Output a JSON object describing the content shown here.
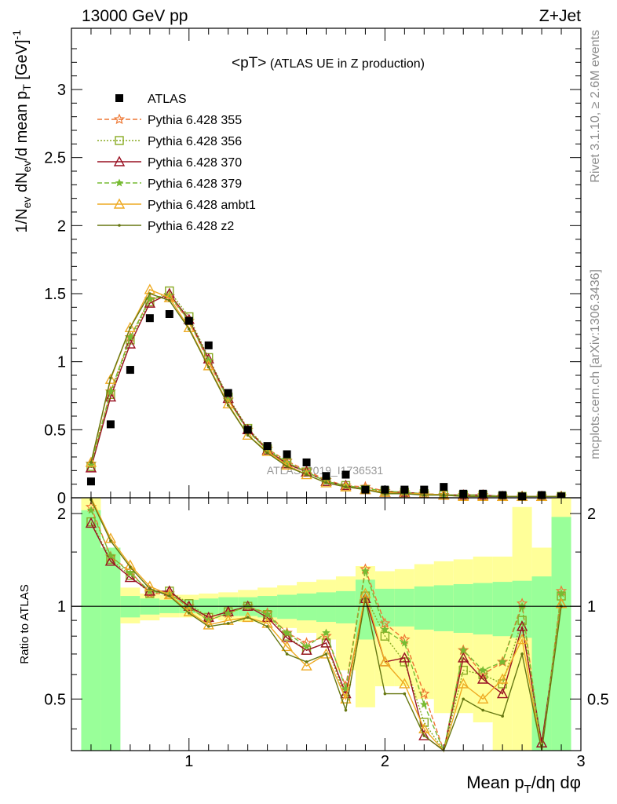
{
  "header": {
    "left": "13000 GeV pp",
    "right": "Z+Jet",
    "plot_title_main": "<pT>",
    "plot_title_sub": " (ATLAS UE in Z production)"
  },
  "side_labels": {
    "top": "Rivet 3.1.10, ≥ 2.6M events",
    "bottom": "mcplots.cern.ch [arXiv:1306.3436]"
  },
  "watermark": "ATLAS_2019_I1736531",
  "axes": {
    "upper_ylabel": "1/N_ev dN_ev/d mean p_T [GeV]^-1",
    "lower_ylabel": "Ratio to ATLAS",
    "xlabel": "Mean p_T/dη dφ"
  },
  "colors": {
    "band_stat": "#99ff99",
    "band_total": "#ffff99",
    "p355": "#ee7733",
    "p356": "#88aa22",
    "p370": "#991122",
    "p379": "#77bb33",
    "ambt1": "#eeaa22",
    "z2": "#667711",
    "atlas": "#000000"
  },
  "chart_data": {
    "type": "scatter",
    "upper": {
      "x": [
        0.5,
        0.6,
        0.7,
        0.8,
        0.9,
        1.0,
        1.1,
        1.2,
        1.3,
        1.4,
        1.5,
        1.6,
        1.7,
        1.8,
        1.9,
        2.0,
        2.1,
        2.2,
        2.3,
        2.4,
        2.5,
        2.6,
        2.7,
        2.8,
        2.9
      ],
      "xlim": [
        0.4,
        3.0
      ],
      "ylim": [
        0,
        3.45
      ],
      "xticks": [
        1,
        2,
        3
      ],
      "yticks": [
        0,
        0.5,
        1,
        1.5,
        2,
        2.5,
        3
      ],
      "ytick_labels": [
        "0",
        "0.5",
        "1",
        "1.5",
        "2",
        "2.5",
        "3"
      ],
      "series": [
        {
          "key": "atlas",
          "name": "ATLAS",
          "marker": "square",
          "values": [
            0.12,
            0.54,
            0.94,
            1.32,
            1.35,
            1.3,
            1.12,
            0.77,
            0.5,
            0.38,
            0.32,
            0.26,
            0.16,
            0.17,
            0.06,
            0.06,
            0.06,
            0.06,
            0.08,
            0.03,
            0.03,
            0.02,
            0.01,
            0.02,
            0.01
          ]
        },
        {
          "key": "p355",
          "name": "Pythia 6.428 355",
          "marker": "star",
          "dash": "6,3",
          "values": [
            0.25,
            0.78,
            1.18,
            1.46,
            1.48,
            1.3,
            1.0,
            0.72,
            0.5,
            0.36,
            0.27,
            0.2,
            0.13,
            0.09,
            0.08,
            0.05,
            0.04,
            0.03,
            0.02,
            0.02,
            0.02,
            0.01,
            0.01,
            0.01,
            0.01
          ]
        },
        {
          "key": "p356",
          "name": "Pythia 6.428 356",
          "marker": "square-open",
          "dash": "2,2",
          "values": [
            0.23,
            0.76,
            1.16,
            1.44,
            1.52,
            1.33,
            1.03,
            0.74,
            0.51,
            0.36,
            0.26,
            0.19,
            0.12,
            0.09,
            0.06,
            0.05,
            0.04,
            0.03,
            0.02,
            0.02,
            0.02,
            0.01,
            0.01,
            0.01,
            0.01
          ]
        },
        {
          "key": "p370",
          "name": "Pythia 6.428 370",
          "marker": "triangle-open",
          "dash": "",
          "values": [
            0.22,
            0.74,
            1.13,
            1.43,
            1.5,
            1.31,
            1.02,
            0.73,
            0.5,
            0.35,
            0.25,
            0.19,
            0.12,
            0.09,
            0.06,
            0.04,
            0.04,
            0.03,
            0.02,
            0.02,
            0.02,
            0.01,
            0.01,
            0.01,
            0.01
          ]
        },
        {
          "key": "p379",
          "name": "Pythia 6.428 379",
          "marker": "star-small",
          "dash": "6,3",
          "values": [
            0.24,
            0.78,
            1.18,
            1.46,
            1.49,
            1.3,
            1.01,
            0.72,
            0.49,
            0.35,
            0.26,
            0.19,
            0.12,
            0.09,
            0.07,
            0.05,
            0.04,
            0.03,
            0.02,
            0.02,
            0.02,
            0.01,
            0.01,
            0.01,
            0.01
          ]
        },
        {
          "key": "ambt1",
          "name": "Pythia 6.428 ambt1",
          "marker": "triangle-open",
          "dash": "",
          "values": [
            0.26,
            0.87,
            1.25,
            1.53,
            1.47,
            1.25,
            0.97,
            0.69,
            0.46,
            0.34,
            0.24,
            0.17,
            0.11,
            0.08,
            0.06,
            0.04,
            0.03,
            0.03,
            0.02,
            0.01,
            0.01,
            0.01,
            0.01,
            0.01,
            0.01
          ]
        },
        {
          "key": "z2",
          "name": "Pythia 6.428 z2",
          "marker": "dot",
          "dash": "",
          "values": [
            0.26,
            0.88,
            1.25,
            1.5,
            1.45,
            1.24,
            0.96,
            0.68,
            0.46,
            0.33,
            0.23,
            0.17,
            0.11,
            0.08,
            0.06,
            0.03,
            0.03,
            0.02,
            0.02,
            0.01,
            0.01,
            0.01,
            0.01,
            0.01,
            0.01
          ]
        }
      ]
    },
    "lower": {
      "xlim": [
        0.4,
        3.0
      ],
      "ylim": [
        0.34,
        2.25
      ],
      "yticks": [
        0.5,
        1,
        2
      ],
      "ytick_labels": [
        "0.5",
        "1",
        "2"
      ],
      "xtick_labels": [
        "1",
        "2",
        "3"
      ],
      "bands": {
        "edges": [
          0.45,
          0.55,
          0.65,
          0.75,
          0.85,
          0.95,
          1.05,
          1.15,
          1.25,
          1.35,
          1.45,
          1.55,
          1.65,
          1.75,
          1.85,
          1.95,
          2.05,
          2.15,
          2.25,
          2.35,
          2.45,
          2.55,
          2.65,
          2.75,
          2.85,
          2.95
        ],
        "stat_lo": [
          0.34,
          0.34,
          0.92,
          0.94,
          0.95,
          0.95,
          0.94,
          0.93,
          0.93,
          0.92,
          0.91,
          0.9,
          0.89,
          0.88,
          0.78,
          0.86,
          0.86,
          0.84,
          0.83,
          0.82,
          0.81,
          0.8,
          0.79,
          0.34,
          0.34
        ],
        "stat_hi": [
          2.05,
          1.55,
          1.08,
          1.06,
          1.05,
          1.05,
          1.06,
          1.07,
          1.07,
          1.08,
          1.09,
          1.1,
          1.11,
          1.12,
          1.22,
          1.14,
          1.14,
          1.16,
          1.17,
          1.18,
          1.19,
          1.2,
          1.21,
          1.25,
          1.95
        ],
        "tot_lo": [
          0.34,
          0.8,
          0.88,
          0.9,
          0.92,
          0.92,
          0.91,
          0.9,
          0.89,
          0.88,
          0.85,
          0.82,
          0.78,
          0.62,
          0.47,
          0.55,
          0.55,
          0.5,
          0.45,
          0.45,
          0.42,
          0.34,
          0.34,
          0.34,
          0.34
        ],
        "tot_hi": [
          2.25,
          1.55,
          1.15,
          1.1,
          1.09,
          1.09,
          1.1,
          1.11,
          1.13,
          1.15,
          1.17,
          1.2,
          1.22,
          1.25,
          1.35,
          1.3,
          1.32,
          1.37,
          1.4,
          1.42,
          1.45,
          1.45,
          2.1,
          1.55,
          2.25
        ]
      },
      "series": [
        {
          "key": "p355",
          "values": [
            2.1,
            1.45,
            1.3,
            1.1,
            1.1,
            1.0,
            0.9,
            0.95,
            1.0,
            0.95,
            0.82,
            0.76,
            0.8,
            0.55,
            1.32,
            0.88,
            0.78,
            0.52,
            0.3,
            0.72,
            0.6,
            0.66,
            1.02,
            0.34,
            1.12
          ]
        },
        {
          "key": "p356",
          "values": [
            1.88,
            1.42,
            1.26,
            1.1,
            1.12,
            1.02,
            0.92,
            0.96,
            1.0,
            0.94,
            0.8,
            0.72,
            0.76,
            0.5,
            1.08,
            0.8,
            0.66,
            0.42,
            0.28,
            0.62,
            0.6,
            0.56,
            0.9,
            0.34,
            1.08
          ]
        },
        {
          "key": "p370",
          "values": [
            1.86,
            1.4,
            1.24,
            1.12,
            1.12,
            1.0,
            0.92,
            0.96,
            1.0,
            0.92,
            0.79,
            0.72,
            0.76,
            0.52,
            1.06,
            0.66,
            0.68,
            0.38,
            0.24,
            0.68,
            0.58,
            0.52,
            0.86,
            0.36,
            1.02
          ]
        },
        {
          "key": "p379",
          "values": [
            2.05,
            1.46,
            1.28,
            1.12,
            1.1,
            0.99,
            0.9,
            0.95,
            1.0,
            0.94,
            0.82,
            0.74,
            0.82,
            0.54,
            1.3,
            0.84,
            0.76,
            0.48,
            0.3,
            0.72,
            0.62,
            0.66,
            1.0,
            0.34,
            1.1
          ]
        },
        {
          "key": "ambt1",
          "values": [
            2.28,
            1.66,
            1.36,
            1.16,
            1.09,
            0.96,
            0.87,
            0.9,
            0.92,
            0.88,
            0.74,
            0.64,
            0.7,
            0.5,
            1.1,
            0.66,
            0.56,
            0.4,
            0.2,
            0.56,
            0.5,
            0.58,
            0.78,
            0.3,
            1.02
          ]
        },
        {
          "key": "z2",
          "values": [
            2.22,
            1.63,
            1.34,
            1.14,
            1.08,
            0.95,
            0.86,
            0.88,
            0.92,
            0.86,
            0.7,
            0.66,
            0.7,
            0.46,
            1.06,
            0.52,
            0.52,
            0.38,
            0.22,
            0.5,
            0.46,
            0.44,
            0.7,
            0.28,
            1.0
          ]
        }
      ]
    }
  }
}
